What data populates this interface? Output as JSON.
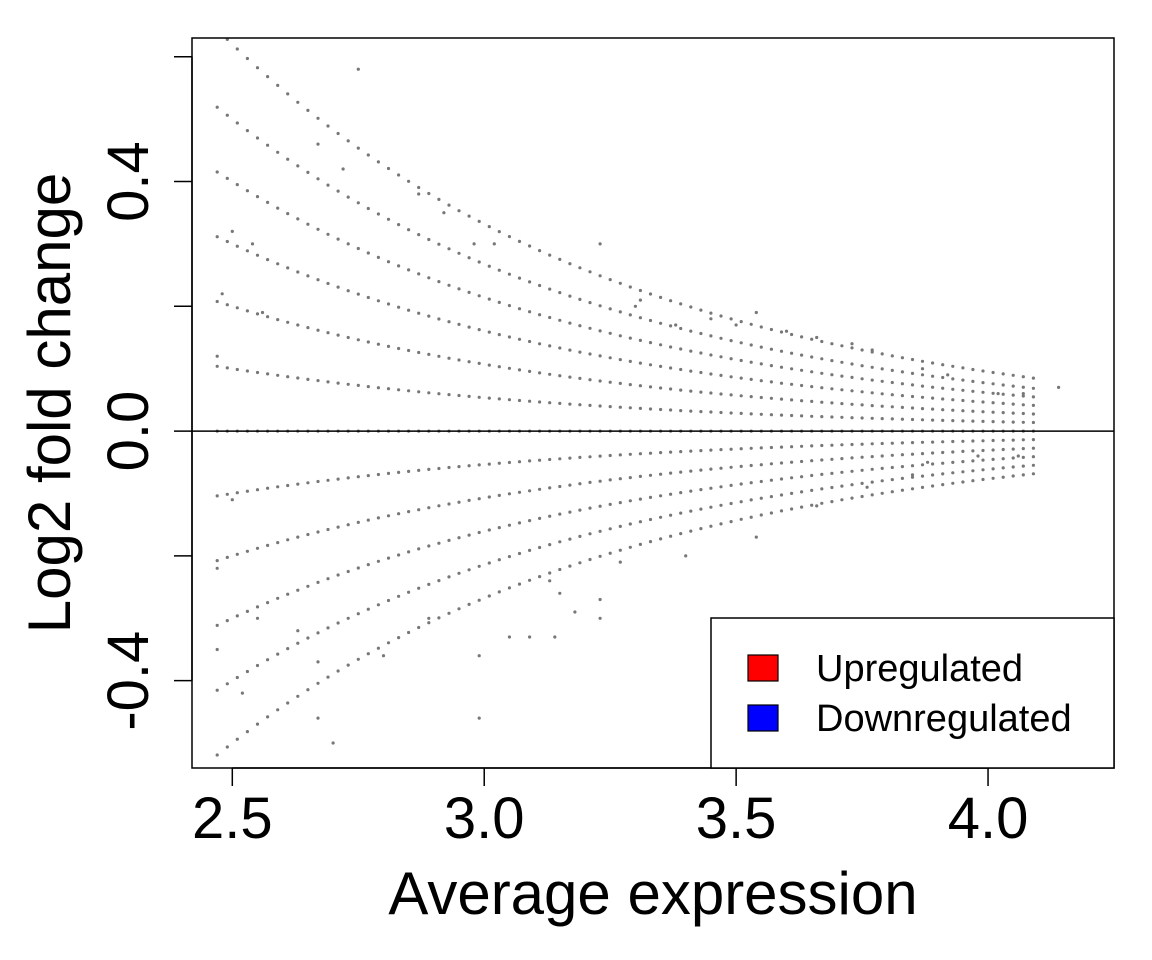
{
  "chart_data": {
    "type": "scatter",
    "title": "",
    "xlabel": "Average expression",
    "ylabel": "Log2 fold change",
    "xlim": [
      2.42,
      4.25
    ],
    "ylim": [
      -0.54,
      0.63
    ],
    "x_ticks": [
      2.5,
      3.0,
      3.5,
      4.0
    ],
    "x_tick_labels": [
      "2.5",
      "3.0",
      "3.5",
      "4.0"
    ],
    "y_ticks": [
      -0.4,
      -0.2,
      0.0,
      0.2,
      0.4,
      0.6
    ],
    "y_tick_labels": [
      "-0.4",
      "",
      "0.0",
      "",
      "0.4",
      ""
    ],
    "reference_line_y": 0.0,
    "point_color": "#777777",
    "legend": {
      "position": "bottom-right",
      "entries": [
        {
          "label": "Upregulated",
          "color": "#ff0000"
        },
        {
          "label": "Downregulated",
          "color": "#0000ff"
        }
      ]
    },
    "curve_params": {
      "x_start": 2.47,
      "x_end": 4.09,
      "step": 0.02,
      "levels_up": [
        0.1,
        0.2,
        0.3,
        0.4,
        0.5,
        0.62
      ],
      "levels_down": [
        0.1,
        0.2,
        0.3,
        0.4,
        0.5
      ],
      "decay_k": 1.25
    },
    "outliers": [
      [
        2.75,
        0.58
      ],
      [
        2.67,
        0.46
      ],
      [
        2.72,
        0.42
      ],
      [
        2.87,
        0.38
      ],
      [
        2.92,
        0.35
      ],
      [
        2.5,
        0.32
      ],
      [
        2.54,
        0.3
      ],
      [
        2.48,
        0.22
      ],
      [
        2.56,
        0.19
      ],
      [
        2.47,
        0.12
      ],
      [
        2.98,
        0.3
      ],
      [
        3.02,
        0.3
      ],
      [
        3.23,
        0.3
      ],
      [
        3.3,
        0.2
      ],
      [
        3.31,
        0.21
      ],
      [
        3.45,
        0.18
      ],
      [
        3.54,
        0.19
      ],
      [
        3.6,
        0.16
      ],
      [
        3.66,
        0.15
      ],
      [
        3.73,
        0.14
      ],
      [
        3.77,
        0.13
      ],
      [
        3.87,
        0.1
      ],
      [
        3.92,
        0.09
      ],
      [
        4.02,
        0.06
      ],
      [
        4.07,
        0.06
      ],
      [
        4.14,
        0.07
      ],
      [
        3.38,
        0.17
      ],
      [
        3.5,
        0.17
      ],
      [
        2.5,
        -0.11
      ],
      [
        2.47,
        -0.22
      ],
      [
        2.55,
        -0.3
      ],
      [
        2.47,
        -0.35
      ],
      [
        2.52,
        -0.42
      ],
      [
        2.67,
        -0.46
      ],
      [
        2.7,
        -0.5
      ],
      [
        2.67,
        -0.37
      ],
      [
        2.63,
        -0.32
      ],
      [
        2.8,
        -0.36
      ],
      [
        2.99,
        -0.36
      ],
      [
        2.99,
        -0.46
      ],
      [
        3.05,
        -0.33
      ],
      [
        3.09,
        -0.33
      ],
      [
        3.14,
        -0.33
      ],
      [
        3.23,
        -0.3
      ],
      [
        3.23,
        -0.27
      ],
      [
        3.15,
        -0.26
      ],
      [
        3.13,
        -0.24
      ],
      [
        3.27,
        -0.21
      ],
      [
        3.4,
        -0.2
      ],
      [
        3.54,
        -0.17
      ],
      [
        3.66,
        -0.12
      ],
      [
        3.76,
        -0.09
      ],
      [
        3.85,
        -0.07
      ],
      [
        3.88,
        -0.05
      ],
      [
        3.98,
        -0.04
      ],
      [
        4.06,
        -0.04
      ],
      [
        3.18,
        -0.29
      ],
      [
        2.89,
        -0.3
      ]
    ]
  }
}
